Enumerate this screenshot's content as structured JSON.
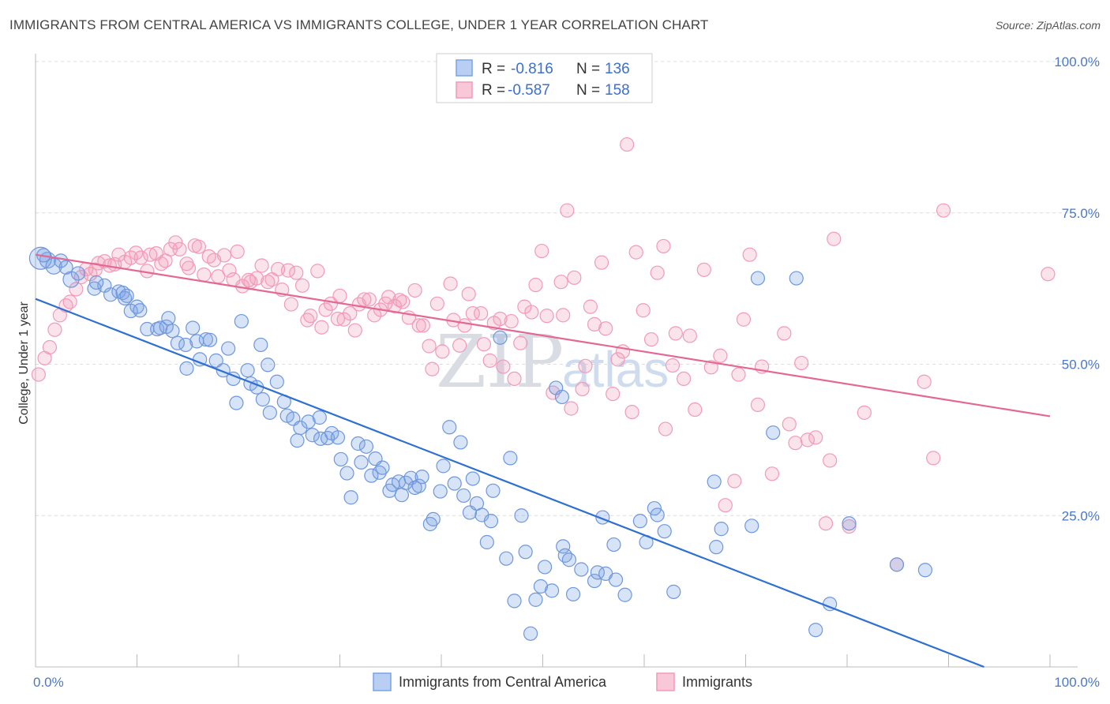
{
  "title": "IMMIGRANTS FROM CENTRAL AMERICA VS IMMIGRANTS COLLEGE, UNDER 1 YEAR CORRELATION CHART",
  "source": "Source: ZipAtlas.com",
  "watermark": {
    "zip": "ZIP",
    "atlas": "atlas"
  },
  "colors": {
    "blue": "#7aa3e6",
    "blue_line": "#2e6fd2",
    "pink": "#f29ab8",
    "pink_line": "#e36893",
    "axis_text": "#4a78c8"
  },
  "legend": {
    "items": [
      {
        "r_label": "R =",
        "r_value": "-0.816",
        "n_label": "N =",
        "n_value": "136"
      },
      {
        "r_label": "R =",
        "r_value": "-0.587",
        "n_label": "N =",
        "n_value": "158"
      }
    ]
  },
  "chart_data": {
    "type": "scatter",
    "title": "IMMIGRANTS FROM CENTRAL AMERICA VS IMMIGRANTS COLLEGE, UNDER 1 YEAR CORRELATION CHART",
    "xlabel": "",
    "ylabel": "College, Under 1 year",
    "xlim": [
      0,
      100
    ],
    "ylim": [
      0,
      100
    ],
    "x_tick_labels": [
      "0.0%",
      "100.0%"
    ],
    "y_ticks": [
      25,
      50,
      75,
      100
    ],
    "y_tick_labels": [
      "25.0%",
      "50.0%",
      "75.0%",
      "100.0%"
    ],
    "grid": true,
    "legend_position": "top-center",
    "series": [
      {
        "name": "Immigrants from Central America",
        "color": "#7aa3e6",
        "trend": {
          "x": [
            0,
            93.5
          ],
          "y": [
            60.8,
            0
          ]
        },
        "points": [
          [
            0.5,
            67.5
          ],
          [
            1.2,
            67.2
          ],
          [
            1.8,
            66.2
          ],
          [
            3.5,
            64.0
          ],
          [
            4.2,
            65.0
          ],
          [
            5.8,
            62.5
          ],
          [
            6.8,
            63.0
          ],
          [
            7.4,
            61.5
          ],
          [
            8.2,
            62.0
          ],
          [
            8.6,
            61.8
          ],
          [
            9.4,
            58.8
          ],
          [
            10.0,
            59.5
          ],
          [
            10.3,
            58.9
          ],
          [
            11.0,
            55.8
          ],
          [
            12.0,
            55.8
          ],
          [
            12.3,
            56.0
          ],
          [
            12.9,
            56.2
          ],
          [
            13.1,
            57.6
          ],
          [
            13.5,
            55.5
          ],
          [
            14.0,
            53.5
          ],
          [
            14.8,
            53.2
          ],
          [
            14.9,
            49.3
          ],
          [
            15.9,
            53.8
          ],
          [
            16.2,
            50.8
          ],
          [
            16.8,
            54.1
          ],
          [
            17.2,
            54.0
          ],
          [
            17.8,
            50.6
          ],
          [
            18.5,
            49.0
          ],
          [
            19.0,
            52.6
          ],
          [
            19.5,
            47.6
          ],
          [
            19.8,
            43.6
          ],
          [
            20.3,
            57.1
          ],
          [
            20.9,
            49.0
          ],
          [
            21.2,
            46.8
          ],
          [
            21.8,
            46.2
          ],
          [
            22.4,
            44.2
          ],
          [
            22.9,
            49.9
          ],
          [
            23.1,
            42.0
          ],
          [
            23.8,
            47.1
          ],
          [
            24.5,
            43.8
          ],
          [
            24.8,
            41.5
          ],
          [
            25.4,
            41.0
          ],
          [
            25.8,
            37.4
          ],
          [
            26.1,
            39.5
          ],
          [
            26.9,
            40.5
          ],
          [
            27.3,
            38.3
          ],
          [
            28.0,
            41.2
          ],
          [
            28.1,
            37.7
          ],
          [
            28.8,
            37.8
          ],
          [
            29.2,
            38.6
          ],
          [
            29.8,
            37.9
          ],
          [
            30.1,
            34.3
          ],
          [
            30.7,
            32.0
          ],
          [
            31.1,
            28.0
          ],
          [
            31.8,
            36.9
          ],
          [
            32.1,
            33.8
          ],
          [
            32.6,
            36.4
          ],
          [
            33.1,
            31.6
          ],
          [
            33.5,
            34.4
          ],
          [
            33.9,
            32.1
          ],
          [
            34.2,
            32.9
          ],
          [
            34.9,
            29.1
          ],
          [
            35.2,
            30.1
          ],
          [
            35.8,
            30.6
          ],
          [
            36.1,
            28.4
          ],
          [
            36.5,
            30.4
          ],
          [
            37.0,
            31.2
          ],
          [
            37.4,
            29.6
          ],
          [
            37.8,
            29.9
          ],
          [
            38.1,
            31.4
          ],
          [
            38.9,
            23.6
          ],
          [
            39.2,
            24.4
          ],
          [
            39.9,
            29.0
          ],
          [
            40.2,
            33.2
          ],
          [
            40.8,
            39.6
          ],
          [
            41.3,
            30.3
          ],
          [
            41.9,
            37.1
          ],
          [
            42.2,
            28.3
          ],
          [
            42.8,
            25.5
          ],
          [
            43.1,
            31.1
          ],
          [
            43.5,
            27.0
          ],
          [
            44.0,
            25.1
          ],
          [
            44.5,
            20.6
          ],
          [
            44.9,
            24.1
          ],
          [
            45.1,
            29.1
          ],
          [
            45.8,
            54.4
          ],
          [
            46.4,
            17.9
          ],
          [
            46.8,
            34.5
          ],
          [
            47.2,
            10.9
          ],
          [
            47.9,
            25.0
          ],
          [
            48.3,
            19.0
          ],
          [
            48.8,
            5.5
          ],
          [
            49.3,
            11.1
          ],
          [
            49.8,
            13.3
          ],
          [
            50.2,
            16.5
          ],
          [
            50.9,
            12.6
          ],
          [
            51.3,
            46.1
          ],
          [
            52.0,
            19.9
          ],
          [
            52.2,
            18.4
          ],
          [
            52.6,
            17.7
          ],
          [
            53.0,
            12.0
          ],
          [
            53.8,
            16.1
          ],
          [
            55.1,
            14.2
          ],
          [
            55.4,
            15.6
          ],
          [
            55.9,
            24.7
          ],
          [
            56.2,
            15.4
          ],
          [
            57.0,
            20.2
          ],
          [
            57.2,
            14.4
          ],
          [
            58.1,
            11.9
          ],
          [
            59.6,
            24.1
          ],
          [
            60.2,
            20.6
          ],
          [
            61.0,
            26.2
          ],
          [
            61.3,
            25.1
          ],
          [
            62.0,
            22.4
          ],
          [
            62.9,
            12.4
          ],
          [
            66.9,
            30.6
          ],
          [
            67.1,
            19.8
          ],
          [
            67.6,
            22.8
          ],
          [
            70.6,
            23.3
          ],
          [
            71.2,
            64.2
          ],
          [
            72.7,
            38.7
          ],
          [
            75.0,
            64.2
          ],
          [
            76.9,
            6.1
          ],
          [
            78.3,
            10.4
          ],
          [
            80.2,
            23.7
          ],
          [
            84.9,
            16.9
          ],
          [
            87.7,
            16.0
          ],
          [
            51.9,
            44.6
          ],
          [
            22.2,
            53.2
          ],
          [
            15.5,
            56.0
          ],
          [
            8.8,
            60.9
          ],
          [
            6.0,
            63.5
          ],
          [
            3.0,
            66.0
          ],
          [
            2.5,
            67.1
          ],
          [
            0.8,
            68.0
          ],
          [
            9.0,
            61.3
          ]
        ]
      },
      {
        "name": "Immigrants",
        "color": "#f29ab8",
        "trend": {
          "x": [
            0,
            100
          ],
          "y": [
            68.1,
            41.4
          ]
        },
        "points": [
          [
            0.3,
            48.3
          ],
          [
            0.9,
            51.0
          ],
          [
            1.4,
            52.8
          ],
          [
            1.9,
            55.7
          ],
          [
            2.4,
            58.1
          ],
          [
            3.0,
            59.7
          ],
          [
            3.4,
            60.3
          ],
          [
            4.0,
            62.4
          ],
          [
            4.5,
            64.4
          ],
          [
            5.0,
            65.7
          ],
          [
            5.4,
            64.9
          ],
          [
            5.9,
            65.6
          ],
          [
            6.2,
            66.7
          ],
          [
            6.8,
            67.0
          ],
          [
            7.3,
            66.3
          ],
          [
            7.8,
            66.5
          ],
          [
            8.2,
            68.1
          ],
          [
            8.8,
            66.9
          ],
          [
            9.4,
            67.6
          ],
          [
            9.9,
            68.4
          ],
          [
            10.4,
            67.6
          ],
          [
            11.0,
            65.4
          ],
          [
            11.3,
            68.1
          ],
          [
            11.9,
            68.3
          ],
          [
            12.4,
            66.6
          ],
          [
            12.8,
            67.1
          ],
          [
            13.3,
            69.0
          ],
          [
            13.8,
            70.1
          ],
          [
            14.2,
            69.0
          ],
          [
            14.9,
            66.6
          ],
          [
            15.1,
            65.9
          ],
          [
            15.7,
            69.6
          ],
          [
            16.1,
            69.4
          ],
          [
            16.6,
            64.8
          ],
          [
            17.1,
            67.8
          ],
          [
            17.6,
            67.2
          ],
          [
            18.0,
            64.5
          ],
          [
            18.6,
            68.0
          ],
          [
            19.1,
            65.5
          ],
          [
            19.5,
            64.0
          ],
          [
            19.9,
            68.6
          ],
          [
            20.4,
            62.9
          ],
          [
            21.0,
            63.9
          ],
          [
            21.2,
            63.6
          ],
          [
            21.8,
            64.2
          ],
          [
            22.3,
            66.3
          ],
          [
            22.9,
            63.6
          ],
          [
            23.3,
            64.0
          ],
          [
            23.9,
            65.7
          ],
          [
            24.3,
            62.3
          ],
          [
            24.9,
            65.5
          ],
          [
            25.2,
            59.9
          ],
          [
            25.7,
            65.1
          ],
          [
            26.3,
            63.0
          ],
          [
            26.8,
            57.3
          ],
          [
            27.1,
            58.0
          ],
          [
            27.8,
            65.4
          ],
          [
            28.2,
            56.1
          ],
          [
            28.6,
            59.0
          ],
          [
            29.1,
            60.0
          ],
          [
            29.8,
            57.5
          ],
          [
            30.0,
            61.3
          ],
          [
            30.4,
            57.4
          ],
          [
            31.0,
            58.4
          ],
          [
            31.5,
            55.6
          ],
          [
            31.9,
            59.9
          ],
          [
            32.4,
            60.7
          ],
          [
            32.9,
            60.7
          ],
          [
            33.4,
            58.1
          ],
          [
            34.0,
            59.0
          ],
          [
            34.5,
            60.0
          ],
          [
            34.8,
            61.1
          ],
          [
            35.4,
            59.6
          ],
          [
            35.9,
            60.6
          ],
          [
            36.2,
            60.3
          ],
          [
            36.8,
            57.7
          ],
          [
            37.4,
            62.2
          ],
          [
            37.8,
            56.4
          ],
          [
            38.2,
            56.4
          ],
          [
            38.8,
            53.0
          ],
          [
            39.1,
            49.2
          ],
          [
            39.6,
            60.0
          ],
          [
            40.1,
            52.1
          ],
          [
            40.9,
            63.3
          ],
          [
            41.2,
            57.3
          ],
          [
            41.8,
            53.1
          ],
          [
            42.3,
            56.4
          ],
          [
            42.7,
            61.6
          ],
          [
            43.1,
            58.4
          ],
          [
            43.9,
            58.4
          ],
          [
            44.2,
            53.3
          ],
          [
            44.8,
            50.6
          ],
          [
            45.2,
            56.8
          ],
          [
            45.8,
            57.5
          ],
          [
            46.1,
            49.6
          ],
          [
            46.9,
            57.1
          ],
          [
            47.2,
            47.6
          ],
          [
            47.8,
            53.5
          ],
          [
            48.2,
            59.5
          ],
          [
            48.9,
            58.6
          ],
          [
            49.3,
            63.1
          ],
          [
            49.9,
            68.7
          ],
          [
            50.4,
            58.0
          ],
          [
            51.0,
            45.3
          ],
          [
            51.8,
            63.6
          ],
          [
            52.0,
            58.1
          ],
          [
            52.4,
            75.4
          ],
          [
            52.8,
            42.7
          ],
          [
            53.1,
            64.3
          ],
          [
            53.9,
            45.9
          ],
          [
            54.2,
            49.7
          ],
          [
            54.7,
            59.5
          ],
          [
            55.1,
            56.6
          ],
          [
            55.8,
            66.8
          ],
          [
            56.2,
            55.9
          ],
          [
            56.9,
            45.1
          ],
          [
            57.4,
            50.8
          ],
          [
            57.9,
            52.1
          ],
          [
            58.3,
            86.3
          ],
          [
            58.8,
            42.1
          ],
          [
            59.2,
            68.5
          ],
          [
            59.9,
            58.9
          ],
          [
            60.7,
            54.1
          ],
          [
            61.3,
            65.1
          ],
          [
            61.9,
            69.5
          ],
          [
            62.1,
            39.3
          ],
          [
            62.8,
            49.8
          ],
          [
            63.1,
            55.1
          ],
          [
            63.9,
            47.6
          ],
          [
            64.5,
            54.7
          ],
          [
            65.0,
            42.5
          ],
          [
            65.9,
            65.6
          ],
          [
            66.6,
            49.5
          ],
          [
            67.5,
            51.4
          ],
          [
            68.0,
            26.7
          ],
          [
            68.9,
            30.7
          ],
          [
            69.3,
            48.3
          ],
          [
            69.8,
            57.4
          ],
          [
            70.4,
            68.1
          ],
          [
            71.2,
            43.3
          ],
          [
            71.6,
            49.6
          ],
          [
            72.6,
            31.9
          ],
          [
            73.8,
            55.1
          ],
          [
            74.3,
            40.1
          ],
          [
            74.9,
            37.0
          ],
          [
            75.5,
            50.2
          ],
          [
            76.1,
            37.5
          ],
          [
            76.9,
            37.9
          ],
          [
            77.9,
            23.7
          ],
          [
            78.3,
            34.1
          ],
          [
            78.7,
            70.7
          ],
          [
            80.2,
            23.2
          ],
          [
            81.7,
            42.0
          ],
          [
            84.9,
            16.9
          ],
          [
            87.6,
            47.1
          ],
          [
            88.5,
            34.5
          ],
          [
            89.5,
            75.4
          ],
          [
            99.8,
            64.9
          ]
        ]
      }
    ]
  },
  "bottom_legend": {
    "items": [
      "Immigrants from Central America",
      "Immigrants"
    ]
  }
}
